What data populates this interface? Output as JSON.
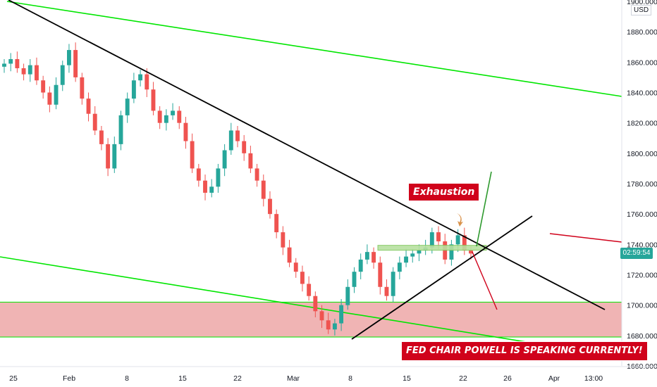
{
  "chart_data": {
    "type": "candlestick",
    "instrument_currency": "USD",
    "ylim": [
      1660,
      1900
    ],
    "y_ticks": [
      "1660.000",
      "1680.000",
      "1700.000",
      "1720.000",
      "1740.000",
      "1760.000",
      "1780.000",
      "1800.000",
      "1820.000",
      "1840.000",
      "1860.000",
      "1880.000",
      "1900.000"
    ],
    "x_ticks": [
      "25",
      "Feb",
      "8",
      "15",
      "22",
      "Mar",
      "8",
      "15",
      "22",
      "26",
      "Apr",
      "13:00"
    ],
    "current_price_label": "02:59:54",
    "annotations": {
      "exhaustion": "Exhaustion",
      "fed": "FED CHAIR POWELL IS SPEAKING CURRENTLY!"
    },
    "demand_zone": [
      1679,
      1702
    ],
    "resistance_level": 1738,
    "colors": {
      "up": "#26a69a",
      "down": "#ef5350",
      "channel": "#00e600",
      "trendline": "#000000",
      "zone_fill": "#f0b4b4",
      "annotation": "#d0021b"
    },
    "candles_summary": [
      1859,
      1862,
      1856,
      1852,
      1858,
      1848,
      1840,
      1832,
      1845,
      1858,
      1868,
      1850,
      1836,
      1826,
      1815,
      1806,
      1790,
      1806,
      1825,
      1836,
      1848,
      1852,
      1842,
      1828,
      1820,
      1825,
      1828,
      1820,
      1808,
      1790,
      1782,
      1774,
      1778,
      1790,
      1802,
      1815,
      1808,
      1800,
      1790,
      1782,
      1770,
      1760,
      1748,
      1738,
      1728,
      1722,
      1714,
      1706,
      1696,
      1690,
      1684,
      1688,
      1700,
      1712,
      1722,
      1730,
      1735,
      1728,
      1712,
      1706,
      1722,
      1728,
      1732,
      1734,
      1736,
      1738,
      1748,
      1742,
      1730,
      1740,
      1746,
      1736,
      1734
    ]
  }
}
